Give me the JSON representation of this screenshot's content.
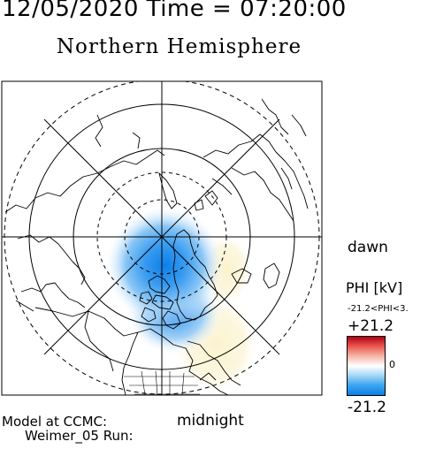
{
  "header": {
    "datetime": "12/05/2020 Time = 07:20:00",
    "title": "Northern Hemisphere"
  },
  "map": {
    "projection": "polar",
    "pole": "north",
    "view": "geomagnetic-local-time",
    "contour_fill": "electric potential",
    "colors": {
      "positive": "#e8504a",
      "neutral": "#ffffff",
      "negative": "#0b7fe8"
    }
  },
  "labels": {
    "dawn": "dawn",
    "midnight": "midnight"
  },
  "model": {
    "line1": "Model at CCMC:",
    "line2": "Weimer_05 Run:"
  },
  "colorbar": {
    "title": "PHI [kV]",
    "range": "-21.2<PHI<3.",
    "max": "+21.2",
    "zero": "0",
    "min": "-21.2"
  }
}
